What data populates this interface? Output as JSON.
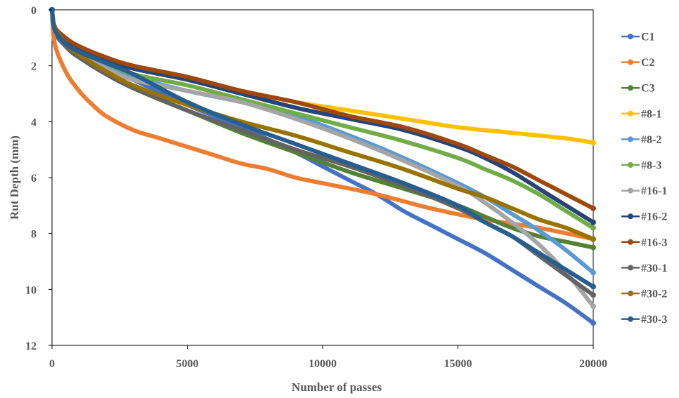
{
  "chart_data": {
    "type": "line",
    "title": "",
    "xlabel": "Number of passes",
    "ylabel": "Rut Depth (mm)",
    "xlim": [
      0,
      20000
    ],
    "ylim": [
      0,
      12
    ],
    "y_inverted": true,
    "x_ticks": [
      0,
      5000,
      10000,
      15000,
      20000
    ],
    "y_ticks": [
      0,
      2,
      4,
      6,
      8,
      10,
      12
    ],
    "grid": false,
    "legend_position": "right",
    "series": [
      {
        "name": "C1",
        "color": "#4472C4",
        "x": [
          0,
          100,
          500,
          1000,
          2000,
          3000,
          5000,
          7000,
          9000,
          10000,
          11000,
          12000,
          13000,
          14000,
          15000,
          16000,
          17000,
          18000,
          19000,
          20000
        ],
        "y": [
          0,
          0.8,
          1.3,
          1.7,
          2.1,
          2.5,
          3.4,
          4.2,
          5.1,
          5.6,
          6.1,
          6.6,
          7.2,
          7.7,
          8.2,
          8.7,
          9.3,
          9.9,
          10.5,
          11.2
        ]
      },
      {
        "name": "C2",
        "color": "#ED7D31",
        "x": [
          0,
          100,
          500,
          1000,
          1500,
          2000,
          3000,
          4000,
          5000,
          6000,
          7000,
          8000,
          9000,
          10000,
          12000,
          14000,
          16000,
          18000,
          20000
        ],
        "y": [
          0,
          1.2,
          2.2,
          2.9,
          3.4,
          3.8,
          4.3,
          4.6,
          4.9,
          5.2,
          5.5,
          5.7,
          6.0,
          6.2,
          6.6,
          7.1,
          7.5,
          7.8,
          8.2
        ]
      },
      {
        "name": "C3",
        "color": "#548235",
        "x": [
          0,
          100,
          500,
          1000,
          2000,
          3000,
          5000,
          7000,
          9000,
          11000,
          13000,
          15000,
          16000,
          17000,
          18000,
          19000,
          20000
        ],
        "y": [
          0,
          0.7,
          1.3,
          1.7,
          2.3,
          2.8,
          3.6,
          4.4,
          5.1,
          5.8,
          6.4,
          7.0,
          7.4,
          7.8,
          8.1,
          8.3,
          8.5
        ]
      },
      {
        "name": "#8-1",
        "color": "#FFC000",
        "x": [
          0,
          100,
          500,
          1000,
          2000,
          3000,
          5000,
          7000,
          9000,
          11000,
          13000,
          15000,
          17000,
          19000,
          20000
        ],
        "y": [
          0,
          0.6,
          1.1,
          1.4,
          1.8,
          2.1,
          2.5,
          2.9,
          3.3,
          3.6,
          3.9,
          4.2,
          4.4,
          4.6,
          4.75
        ]
      },
      {
        "name": "#8-2",
        "color": "#5B9BD5",
        "x": [
          0,
          100,
          500,
          1000,
          2000,
          3000,
          5000,
          7000,
          9000,
          11000,
          13000,
          15000,
          16000,
          17000,
          18000,
          19000,
          20000
        ],
        "y": [
          0,
          0.7,
          1.2,
          1.6,
          2.0,
          2.4,
          2.9,
          3.3,
          3.8,
          4.5,
          5.3,
          6.2,
          6.7,
          7.3,
          7.9,
          8.6,
          9.4
        ]
      },
      {
        "name": "#8-3",
        "color": "#70AD47",
        "x": [
          0,
          100,
          500,
          1000,
          2000,
          3000,
          5000,
          7000,
          9000,
          11000,
          13000,
          15000,
          16000,
          17000,
          18000,
          19000,
          20000
        ],
        "y": [
          0,
          0.6,
          1.1,
          1.4,
          1.9,
          2.3,
          2.7,
          3.2,
          3.7,
          4.2,
          4.7,
          5.3,
          5.7,
          6.1,
          6.6,
          7.2,
          7.8
        ]
      },
      {
        "name": "#16-1",
        "color": "#A5A5A5",
        "x": [
          0,
          100,
          500,
          1000,
          2000,
          3000,
          5000,
          7000,
          9000,
          11000,
          13000,
          15000,
          16000,
          17000,
          18000,
          19000,
          20000
        ],
        "y": [
          0,
          0.7,
          1.2,
          1.6,
          2.1,
          2.5,
          2.9,
          3.3,
          3.9,
          4.6,
          5.4,
          6.3,
          6.9,
          7.6,
          8.4,
          9.4,
          10.6
        ]
      },
      {
        "name": "#16-2",
        "color": "#264478",
        "x": [
          0,
          100,
          500,
          1000,
          2000,
          3000,
          5000,
          7000,
          9000,
          11000,
          13000,
          15000,
          16000,
          17000,
          18000,
          19000,
          20000
        ],
        "y": [
          0,
          0.6,
          1.1,
          1.4,
          1.8,
          2.1,
          2.5,
          3.0,
          3.5,
          3.9,
          4.3,
          4.9,
          5.3,
          5.8,
          6.4,
          7.0,
          7.6
        ]
      },
      {
        "name": "#16-3",
        "color": "#9E480E",
        "x": [
          0,
          100,
          500,
          1000,
          2000,
          3000,
          5000,
          7000,
          9000,
          11000,
          13000,
          15000,
          16000,
          17000,
          18000,
          19000,
          20000
        ],
        "y": [
          0,
          0.6,
          1.0,
          1.3,
          1.7,
          2.0,
          2.4,
          2.9,
          3.3,
          3.8,
          4.2,
          4.8,
          5.2,
          5.6,
          6.1,
          6.6,
          7.1
        ]
      },
      {
        "name": "#30-1",
        "color": "#636363",
        "x": [
          0,
          100,
          500,
          1000,
          2000,
          3000,
          5000,
          7000,
          9000,
          11000,
          13000,
          15000,
          16000,
          17000,
          18000,
          19000,
          20000
        ],
        "y": [
          0,
          0.7,
          1.3,
          1.7,
          2.3,
          2.8,
          3.6,
          4.3,
          5.0,
          5.6,
          6.3,
          7.1,
          7.6,
          8.1,
          8.8,
          9.5,
          10.2
        ]
      },
      {
        "name": "#30-2",
        "color": "#997300",
        "x": [
          0,
          100,
          500,
          1000,
          2000,
          3000,
          5000,
          7000,
          9000,
          11000,
          13000,
          15000,
          16000,
          17000,
          18000,
          19000,
          20000
        ],
        "y": [
          0,
          0.6,
          1.2,
          1.6,
          2.2,
          2.7,
          3.4,
          4.0,
          4.5,
          5.1,
          5.7,
          6.4,
          6.7,
          7.1,
          7.5,
          7.8,
          8.2
        ]
      },
      {
        "name": "#30-3",
        "color": "#255E91",
        "x": [
          0,
          100,
          500,
          1000,
          2000,
          3000,
          5000,
          7000,
          9000,
          11000,
          13000,
          15000,
          16000,
          17000,
          18000,
          19000,
          20000
        ],
        "y": [
          0,
          0.7,
          1.2,
          1.5,
          1.9,
          2.3,
          3.3,
          4.1,
          4.8,
          5.5,
          6.2,
          7.0,
          7.6,
          8.1,
          8.7,
          9.3,
          9.9
        ]
      }
    ]
  }
}
